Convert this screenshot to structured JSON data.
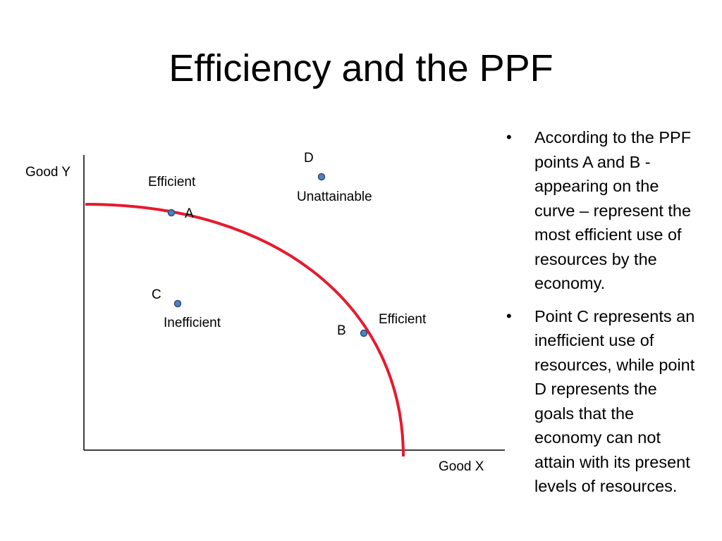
{
  "title": "Efficiency and the PPF",
  "diagram": {
    "axis_y_label": "Good Y",
    "axis_x_label": "Good X",
    "curve_color": "#e8192c",
    "point_color": "#4f81bd",
    "points": [
      {
        "id": "A",
        "label": "A",
        "status": "Efficient"
      },
      {
        "id": "B",
        "label": "B",
        "status": "Efficient"
      },
      {
        "id": "C",
        "label": "C",
        "status": "Inefficient"
      },
      {
        "id": "D",
        "label": "D",
        "status": "Unattainable"
      }
    ]
  },
  "bullets": [
    "According to the PPF points A and B - appearing on the curve – represent the most efficient use of resources by the economy.",
    "Point C represents an inefficient use of resources, while point D represents the goals that the economy can not attain with its present levels of resources."
  ],
  "bullet_symbol": "•"
}
